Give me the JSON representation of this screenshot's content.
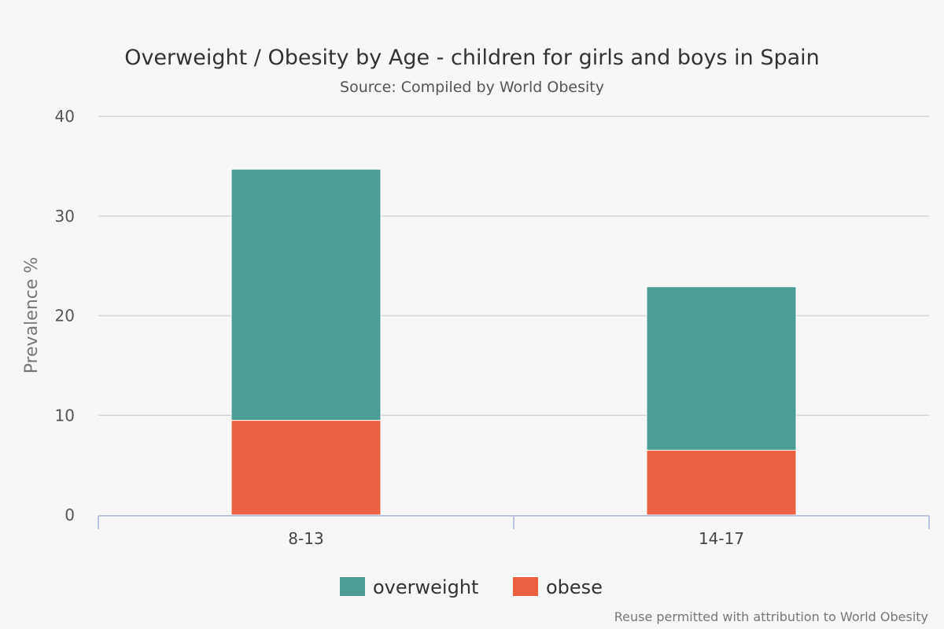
{
  "chart_data": {
    "type": "bar",
    "stacked": true,
    "title": "Overweight / Obesity by Age - children for girls and boys in Spain",
    "subtitle": "Source: Compiled by World Obesity",
    "xlabel": "",
    "ylabel": "Prevalence %",
    "ylim": [
      0,
      40
    ],
    "yticks": [
      "0",
      "10",
      "20",
      "30",
      "40"
    ],
    "categories": [
      "8-13",
      "14-17"
    ],
    "series": [
      {
        "name": "overweight",
        "color": "#4c9d94",
        "values": [
          25.2,
          16.4
        ]
      },
      {
        "name": "obese",
        "color": "#ea6141",
        "values": [
          9.5,
          6.5
        ]
      }
    ],
    "grid": true,
    "legend_position": "bottom-center",
    "credits": "Reuse permitted with attribution to World Obesity"
  }
}
